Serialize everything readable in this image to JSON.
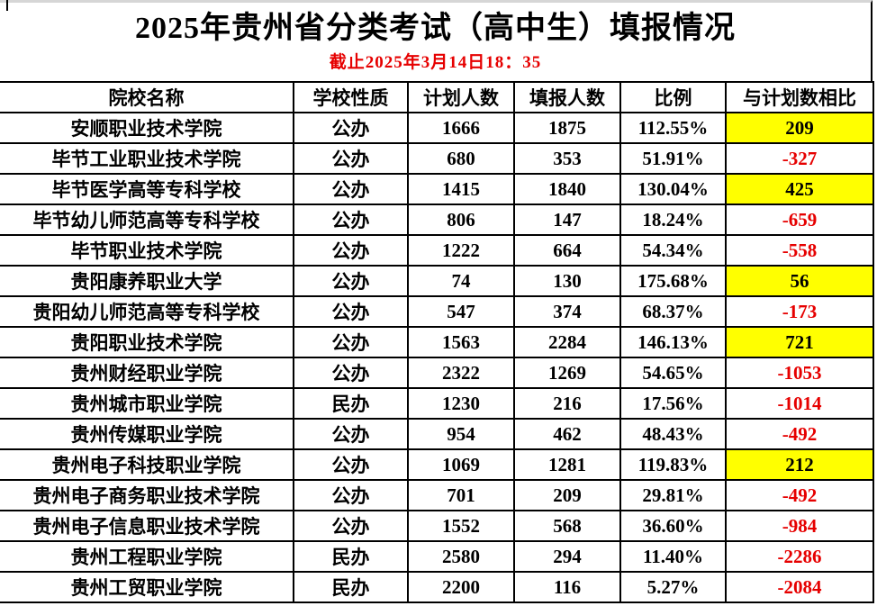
{
  "page": {
    "title": "2025年贵州省分类考试（高中生）填报情况",
    "subtitle": "截止2025年3月14日18：35"
  },
  "colors": {
    "highlight_yellow": "#ffff00",
    "negative_red": "#e60000",
    "subtitle_red": "#e60000",
    "border_black": "#000000"
  },
  "table": {
    "headers": [
      "院校名称",
      "学校性质",
      "计划人数",
      "填报人数",
      "比例",
      "与计划数相比"
    ],
    "rows": [
      {
        "name": "安顺职业技术学院",
        "type": "公办",
        "plan": "1666",
        "applied": "1875",
        "ratio": "112.55%",
        "diff": "209",
        "diff_highlight": true
      },
      {
        "name": "毕节工业职业技术学院",
        "type": "公办",
        "plan": "680",
        "applied": "353",
        "ratio": "51.91%",
        "diff": "-327",
        "diff_highlight": false
      },
      {
        "name": "毕节医学高等专科学校",
        "type": "公办",
        "plan": "1415",
        "applied": "1840",
        "ratio": "130.04%",
        "diff": "425",
        "diff_highlight": true
      },
      {
        "name": "毕节幼儿师范高等专科学校",
        "type": "公办",
        "plan": "806",
        "applied": "147",
        "ratio": "18.24%",
        "diff": "-659",
        "diff_highlight": false
      },
      {
        "name": "毕节职业技术学院",
        "type": "公办",
        "plan": "1222",
        "applied": "664",
        "ratio": "54.34%",
        "diff": "-558",
        "diff_highlight": false
      },
      {
        "name": "贵阳康养职业大学",
        "type": "公办",
        "plan": "74",
        "applied": "130",
        "ratio": "175.68%",
        "diff": "56",
        "diff_highlight": true
      },
      {
        "name": "贵阳幼儿师范高等专科学校",
        "type": "公办",
        "plan": "547",
        "applied": "374",
        "ratio": "68.37%",
        "diff": "-173",
        "diff_highlight": false
      },
      {
        "name": "贵阳职业技术学院",
        "type": "公办",
        "plan": "1563",
        "applied": "2284",
        "ratio": "146.13%",
        "diff": "721",
        "diff_highlight": true
      },
      {
        "name": "贵州财经职业学院",
        "type": "公办",
        "plan": "2322",
        "applied": "1269",
        "ratio": "54.65%",
        "diff": "-1053",
        "diff_highlight": false
      },
      {
        "name": "贵州城市职业学院",
        "type": "民办",
        "plan": "1230",
        "applied": "216",
        "ratio": "17.56%",
        "diff": "-1014",
        "diff_highlight": false
      },
      {
        "name": "贵州传媒职业学院",
        "type": "公办",
        "plan": "954",
        "applied": "462",
        "ratio": "48.43%",
        "diff": "-492",
        "diff_highlight": false
      },
      {
        "name": "贵州电子科技职业学院",
        "type": "公办",
        "plan": "1069",
        "applied": "1281",
        "ratio": "119.83%",
        "diff": "212",
        "diff_highlight": true
      },
      {
        "name": "贵州电子商务职业技术学院",
        "type": "公办",
        "plan": "701",
        "applied": "209",
        "ratio": "29.81%",
        "diff": "-492",
        "diff_highlight": false
      },
      {
        "name": "贵州电子信息职业技术学院",
        "type": "公办",
        "plan": "1552",
        "applied": "568",
        "ratio": "36.60%",
        "diff": "-984",
        "diff_highlight": false
      },
      {
        "name": "贵州工程职业学院",
        "type": "民办",
        "plan": "2580",
        "applied": "294",
        "ratio": "11.40%",
        "diff": "-2286",
        "diff_highlight": false
      },
      {
        "name": "贵州工贸职业学院",
        "type": "民办",
        "plan": "2200",
        "applied": "116",
        "ratio": "5.27%",
        "diff": "-2084",
        "diff_highlight": false
      }
    ]
  }
}
